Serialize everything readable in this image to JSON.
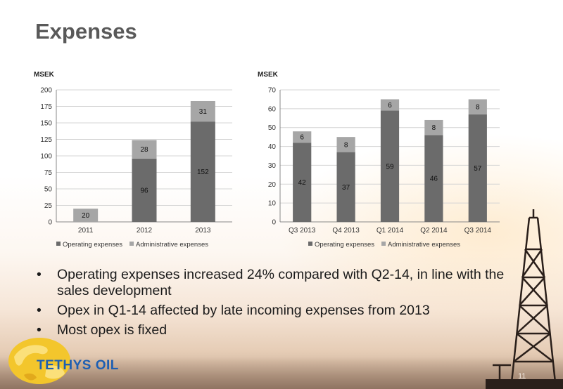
{
  "slide": {
    "title": "Expenses",
    "page_number": "11",
    "logo_text": "TETHYS OIL"
  },
  "bullets": [
    "Operating expenses increased 24% compared with Q2-14, in line with the sales development",
    "Opex in Q1-14 affected by late incoming expenses from 2013",
    "Most opex is fixed"
  ],
  "colors": {
    "operating": "#6b6b6b",
    "administrative": "#a6a6a6",
    "title": "#595959",
    "logo": "#1d5fb3"
  },
  "chart_data": [
    {
      "type": "bar",
      "stacked": true,
      "title": "",
      "ylabel": "MSEK",
      "xlabel": "",
      "categories": [
        "2011",
        "2012",
        "2013"
      ],
      "ylim": [
        0,
        200
      ],
      "yticks": [
        0,
        25,
        50,
        75,
        100,
        125,
        150,
        175,
        200
      ],
      "grid": true,
      "legend": "bottom",
      "series": [
        {
          "name": "Operating expenses",
          "values": [
            0,
            96,
            152
          ],
          "color": "#6b6b6b"
        },
        {
          "name": "Administrative expenses",
          "values": [
            20,
            28,
            31
          ],
          "color": "#a6a6a6"
        }
      ]
    },
    {
      "type": "bar",
      "stacked": true,
      "title": "",
      "ylabel": "MSEK",
      "xlabel": "",
      "categories": [
        "Q3 2013",
        "Q4 2013",
        "Q1 2014",
        "Q2 2014",
        "Q3 2014"
      ],
      "ylim": [
        0,
        70
      ],
      "yticks": [
        0,
        10,
        20,
        30,
        40,
        50,
        60,
        70
      ],
      "grid": true,
      "legend": "bottom",
      "series": [
        {
          "name": "Operating expenses",
          "values": [
            42,
            37,
            59,
            46,
            57
          ],
          "color": "#6b6b6b"
        },
        {
          "name": "Administrative expenses",
          "values": [
            6,
            8,
            6,
            8,
            8
          ],
          "color": "#a6a6a6"
        }
      ]
    }
  ]
}
